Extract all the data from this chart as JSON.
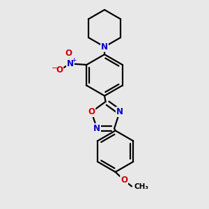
{
  "background_color": "#e8e8e8",
  "bond_color": "#000000",
  "N_color": "#0000cc",
  "O_color": "#cc0000",
  "line_width": 1.6,
  "figsize": [
    3.0,
    3.0
  ],
  "dpi": 100,
  "xlim": [
    0.05,
    0.95
  ],
  "ylim": [
    0.02,
    0.98
  ]
}
